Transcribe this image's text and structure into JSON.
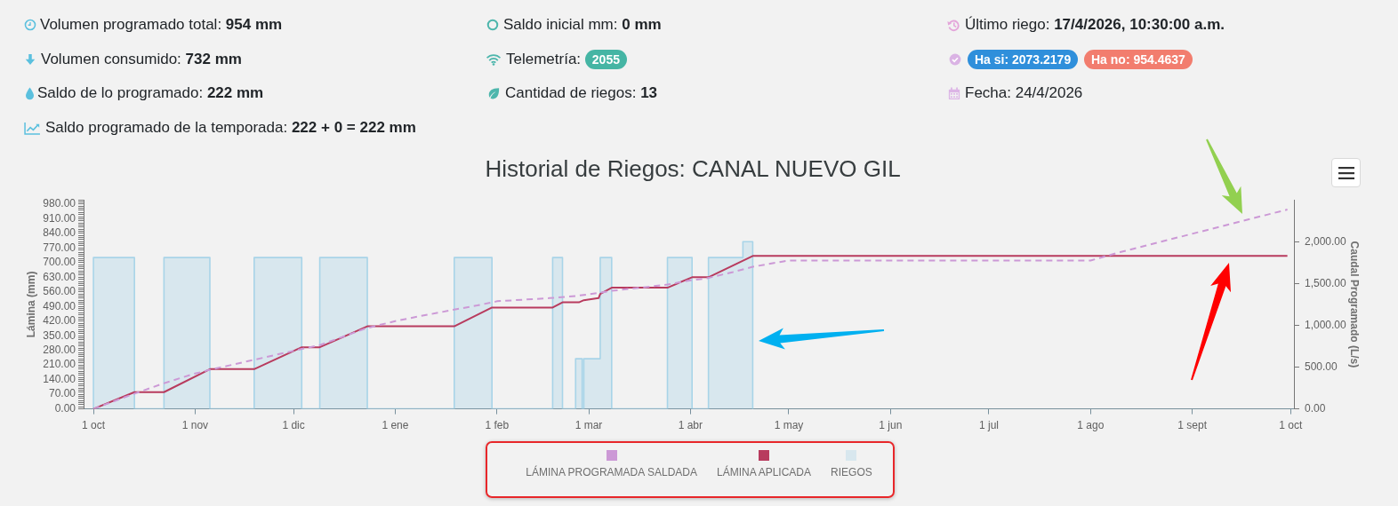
{
  "chart_data": {
    "type": "line",
    "title": "Historial de Riegos: CANAL NUEVO GIL",
    "ylabel": "Lámina (mm)",
    "y2label": "Caudal Programado (L/s)",
    "xlim": [
      "2025-09-28",
      "2026-10-02"
    ],
    "xticks": [
      {
        "value": "2025-10-01",
        "label": "1 oct"
      },
      {
        "value": "2025-11-01",
        "label": "1 nov"
      },
      {
        "value": "2025-12-01",
        "label": "1 dic"
      },
      {
        "value": "2026-01-01",
        "label": "1 ene"
      },
      {
        "value": "2026-02-01",
        "label": "1 feb"
      },
      {
        "value": "2026-03-01",
        "label": "1 mar"
      },
      {
        "value": "2026-04-01",
        "label": "1 abr"
      },
      {
        "value": "2026-05-01",
        "label": "1 may"
      },
      {
        "value": "2026-06-01",
        "label": "1 jun"
      },
      {
        "value": "2026-07-01",
        "label": "1 jul"
      },
      {
        "value": "2026-08-01",
        "label": "1 ago"
      },
      {
        "value": "2026-09-01",
        "label": "1 sept"
      },
      {
        "value": "2026-10-01",
        "label": "1 oct"
      }
    ],
    "ylim": [
      0,
      1000
    ],
    "yticks": [
      {
        "value": 0,
        "label": "0.00"
      },
      {
        "value": 10,
        "label": null
      },
      {
        "value": 20,
        "label": null
      },
      {
        "value": 30,
        "label": null
      },
      {
        "value": 40,
        "label": null
      },
      {
        "value": 50,
        "label": null
      },
      {
        "value": 60,
        "label": null
      },
      {
        "value": 70,
        "label": "70.00"
      },
      {
        "value": 80,
        "label": null
      },
      {
        "value": 90,
        "label": null
      },
      {
        "value": 100,
        "label": null
      },
      {
        "value": 110,
        "label": null
      },
      {
        "value": 120,
        "label": null
      },
      {
        "value": 130,
        "label": null
      },
      {
        "value": 140,
        "label": "140.00"
      },
      {
        "value": 150,
        "label": null
      },
      {
        "value": 160,
        "label": null
      },
      {
        "value": 170,
        "label": null
      },
      {
        "value": 180,
        "label": null
      },
      {
        "value": 190,
        "label": null
      },
      {
        "value": 200,
        "label": null
      },
      {
        "value": 210,
        "label": "210.00"
      },
      {
        "value": 220,
        "label": null
      },
      {
        "value": 230,
        "label": null
      },
      {
        "value": 240,
        "label": null
      },
      {
        "value": 250,
        "label": null
      },
      {
        "value": 260,
        "label": null
      },
      {
        "value": 270,
        "label": null
      },
      {
        "value": 280,
        "label": "280.00"
      },
      {
        "value": 290,
        "label": null
      },
      {
        "value": 300,
        "label": null
      },
      {
        "value": 310,
        "label": null
      },
      {
        "value": 320,
        "label": null
      },
      {
        "value": 330,
        "label": null
      },
      {
        "value": 340,
        "label": null
      },
      {
        "value": 350,
        "label": "350.00"
      },
      {
        "value": 360,
        "label": null
      },
      {
        "value": 370,
        "label": null
      },
      {
        "value": 380,
        "label": null
      },
      {
        "value": 390,
        "label": null
      },
      {
        "value": 400,
        "label": null
      },
      {
        "value": 410,
        "label": null
      },
      {
        "value": 420,
        "label": "420.00"
      },
      {
        "value": 430,
        "label": null
      },
      {
        "value": 440,
        "label": null
      },
      {
        "value": 450,
        "label": null
      },
      {
        "value": 460,
        "label": null
      },
      {
        "value": 470,
        "label": null
      },
      {
        "value": 480,
        "label": null
      },
      {
        "value": 490,
        "label": "490.00"
      },
      {
        "value": 500,
        "label": null
      },
      {
        "value": 510,
        "label": null
      },
      {
        "value": 520,
        "label": null
      },
      {
        "value": 530,
        "label": null
      },
      {
        "value": 540,
        "label": null
      },
      {
        "value": 550,
        "label": null
      },
      {
        "value": 560,
        "label": "560.00"
      },
      {
        "value": 570,
        "label": null
      },
      {
        "value": 580,
        "label": null
      },
      {
        "value": 590,
        "label": null
      },
      {
        "value": 600,
        "label": null
      },
      {
        "value": 610,
        "label": null
      },
      {
        "value": 620,
        "label": null
      },
      {
        "value": 630,
        "label": "630.00"
      },
      {
        "value": 640,
        "label": null
      },
      {
        "value": 650,
        "label": null
      },
      {
        "value": 660,
        "label": null
      },
      {
        "value": 670,
        "label": null
      },
      {
        "value": 680,
        "label": null
      },
      {
        "value": 690,
        "label": null
      },
      {
        "value": 700,
        "label": "700.00"
      },
      {
        "value": 710,
        "label": null
      },
      {
        "value": 720,
        "label": null
      },
      {
        "value": 730,
        "label": null
      },
      {
        "value": 740,
        "label": null
      },
      {
        "value": 750,
        "label": null
      },
      {
        "value": 760,
        "label": null
      },
      {
        "value": 770,
        "label": "770.00"
      },
      {
        "value": 780,
        "label": null
      },
      {
        "value": 790,
        "label": null
      },
      {
        "value": 800,
        "label": null
      },
      {
        "value": 810,
        "label": null
      },
      {
        "value": 820,
        "label": null
      },
      {
        "value": 830,
        "label": null
      },
      {
        "value": 840,
        "label": "840.00"
      },
      {
        "value": 850,
        "label": null
      },
      {
        "value": 860,
        "label": null
      },
      {
        "value": 870,
        "label": null
      },
      {
        "value": 880,
        "label": null
      },
      {
        "value": 890,
        "label": null
      },
      {
        "value": 900,
        "label": null
      },
      {
        "value": 910,
        "label": "910.00"
      },
      {
        "value": 920,
        "label": null
      },
      {
        "value": 930,
        "label": null
      },
      {
        "value": 940,
        "label": null
      },
      {
        "value": 950,
        "label": null
      },
      {
        "value": 960,
        "label": null
      },
      {
        "value": 970,
        "label": null
      },
      {
        "value": 980,
        "label": "980.00"
      },
      {
        "value": 990,
        "label": null
      },
      {
        "value": 1000,
        "label": null
      }
    ],
    "y2lim": [
      0,
      2500
    ],
    "y2ticks": [
      {
        "value": 0,
        "label": "0.00"
      },
      {
        "value": 500,
        "label": "500.00"
      },
      {
        "value": 1000,
        "label": "1,000.00"
      },
      {
        "value": 1500,
        "label": "1,500.00"
      },
      {
        "value": 2000,
        "label": "2,000.00"
      }
    ],
    "legend": "bottom",
    "series": [
      {
        "name": "LÁMINA PROGRAMADA SALDADA",
        "line_style": "dashed",
        "color": "#cc99d6",
        "x": [
          "2025-10-01",
          "2025-10-13",
          "2025-10-22",
          "2025-10-31",
          "2025-11-05",
          "2025-11-19",
          "2025-12-03",
          "2025-12-09",
          "2025-12-23",
          "2026-01-01",
          "2026-01-09",
          "2026-01-19",
          "2026-01-26",
          "2026-02-01",
          "2026-02-17",
          "2026-02-25",
          "2026-03-04",
          "2026-03-08",
          "2026-03-17",
          "2026-03-25",
          "2026-04-01",
          "2026-04-06",
          "2026-04-14",
          "2026-04-20",
          "2026-04-29",
          "2026-05-01",
          "2026-08-01",
          "2026-08-10",
          "2026-09-30"
        ],
        "values": [
          0,
          70,
          120,
          165,
          185,
          235,
          285,
          305,
          385,
          420,
          445,
          475,
          495,
          515,
          530,
          540,
          555,
          565,
          580,
          595,
          615,
          625,
          655,
          680,
          705,
          710,
          710,
          750,
          954
        ]
      },
      {
        "name": "LÁMINA APLICADA",
        "color": "#b83b5e",
        "x": [
          "2025-10-01",
          "2025-10-13T12:00",
          "2025-10-22T12:00",
          "2025-11-05T12:00",
          "2025-11-19",
          "2025-12-03T12:00",
          "2025-12-09",
          "2025-12-23T12:00",
          "2026-01-19",
          "2026-01-30T12:00",
          "2026-02-18",
          "2026-02-21",
          "2026-02-26",
          "2026-02-27T12:00",
          "2026-03-04",
          "2026-03-04T12:00",
          "2026-03-08",
          "2026-03-25",
          "2026-04-01T12:00",
          "2026-04-06T12:00",
          "2026-04-20",
          "2026-09-30"
        ],
        "values": [
          0,
          80,
          80,
          190,
          190,
          295,
          295,
          395,
          395,
          485,
          485,
          510,
          510,
          520,
          530,
          550,
          580,
          580,
          630,
          630,
          732,
          732
        ]
      },
      {
        "name": "RIEGOS",
        "type": "area",
        "axis": "y2",
        "color": "#a8d4e8",
        "x": [
          "2025-10-01",
          "2025-10-01",
          "2025-10-13T12:00",
          "2025-10-13T12:00",
          "2025-10-22T12:00",
          "2025-10-22T12:00",
          "2025-11-05T12:00",
          "2025-11-05T12:00",
          "2025-11-19",
          "2025-11-19",
          "2025-12-03T12:00",
          "2025-12-03T12:00",
          "2025-12-09",
          "2025-12-09",
          "2025-12-23T12:00",
          "2025-12-23T12:00",
          "2026-01-19",
          "2026-01-19",
          "2026-01-30T12:00",
          "2026-01-30T12:00",
          "2026-02-18",
          "2026-02-18",
          "2026-02-21",
          "2026-02-21",
          "2026-02-25",
          "2026-02-25",
          "2026-02-27",
          "2026-02-27",
          "2026-02-27T12:00",
          "2026-02-27T12:00",
          "2026-03-04T12:00",
          "2026-03-04T12:00",
          "2026-03-08",
          "2026-03-08",
          "2026-03-25",
          "2026-03-25",
          "2026-04-01T12:00",
          "2026-04-01T12:00",
          "2026-04-06T12:00",
          "2026-04-06T12:00",
          "2026-04-17",
          "2026-04-17",
          "2026-04-20",
          "2026-04-20"
        ],
        "values": [
          0,
          1810,
          1810,
          0,
          0,
          1810,
          1810,
          0,
          0,
          1810,
          1810,
          0,
          0,
          1810,
          1810,
          0,
          0,
          1810,
          1810,
          0,
          0,
          1810,
          1810,
          0,
          0,
          600,
          600,
          0,
          0,
          600,
          600,
          1810,
          1810,
          0,
          0,
          1810,
          1810,
          0,
          0,
          1810,
          1810,
          2000,
          2000,
          0
        ]
      }
    ],
    "annotations": [
      "Volumen programado total: 954 mm",
      "Saldo inicial mm: 0 mm",
      "Último riego: 17/4/2026, 10:30:00 a.m.",
      "Volumen consumido: 732 mm",
      "Telemetría: 2055",
      "Ha si: 2073.2179",
      "Ha no: 954.4637",
      "Saldo de lo programado: 222 mm",
      "Cantidad de riegos: 13",
      "Fecha: 24/4/2026",
      "Saldo programado de la temporada: 222 + 0 = 222 mm"
    ]
  }
}
